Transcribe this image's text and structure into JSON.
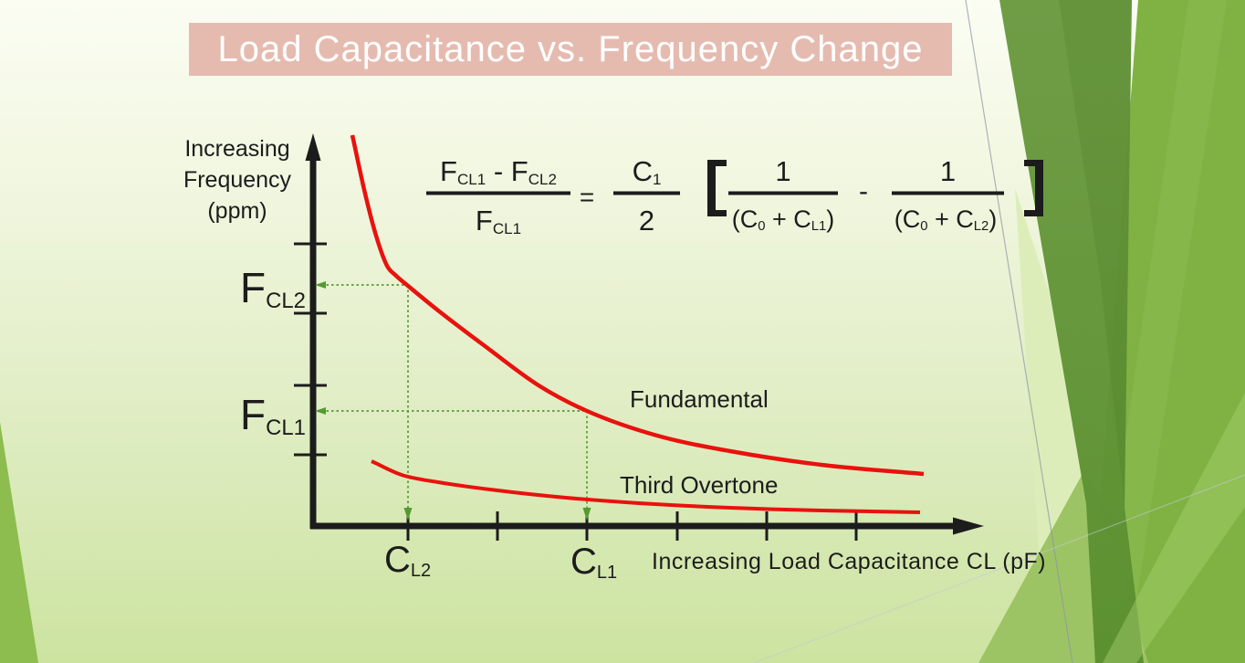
{
  "title": {
    "text": "Load Capacitance vs. Frequency Change"
  },
  "y_axis": {
    "label": "Increasing\nFrequency\n(ppm)",
    "marked_values": [
      {
        "base": "F",
        "sub": "CL2"
      },
      {
        "base": "F",
        "sub": "CL1"
      }
    ]
  },
  "x_axis": {
    "label": "Increasing Load Capacitance CL (pF)",
    "marked_values": [
      {
        "base": "C",
        "sub": "L2"
      },
      {
        "base": "C",
        "sub": "L1"
      }
    ]
  },
  "curve_labels": {
    "fundamental": "Fundamental",
    "third_overtone": "Third Overtone"
  },
  "chart_data": {
    "type": "line",
    "title": "Load Capacitance vs. Frequency Change",
    "xlabel": "Increasing Load Capacitance CL (pF)",
    "ylabel": "Increasing Frequency (ppm)",
    "qualitative": true,
    "series": [
      {
        "name": "Fundamental",
        "shape": "steep hyperbolic decay from high frequency at low CL flattening at high CL"
      },
      {
        "name": "Third Overtone",
        "shape": "shallow decay, much flatter and lower than fundamental"
      }
    ],
    "marked_points": [
      {
        "x": "CL2",
        "y": "FCL2",
        "series": "Fundamental"
      },
      {
        "x": "CL1",
        "y": "FCL1",
        "series": "Fundamental"
      }
    ]
  },
  "formula": {
    "lhs_num": [
      {
        "t": "F"
      },
      {
        "s": "CL1"
      },
      {
        "t": " - F"
      },
      {
        "s": "CL2"
      }
    ],
    "lhs_den": [
      {
        "t": "F"
      },
      {
        "s": "CL1"
      }
    ],
    "equals": "=",
    "c_num": [
      {
        "t": "C"
      },
      {
        "s": "1"
      }
    ],
    "c_den": "2",
    "bracket_left": "[",
    "term1_num": "1",
    "term1_den": [
      {
        "t": "(C"
      },
      {
        "s": "0"
      },
      {
        "t": " + C"
      },
      {
        "s": "L1"
      },
      {
        "t": ")"
      }
    ],
    "minus": "-",
    "term2_num": "1",
    "term2_den": [
      {
        "t": "(C"
      },
      {
        "s": "0"
      },
      {
        "t": " + C"
      },
      {
        "s": "L2"
      },
      {
        "t": ")"
      }
    ]
  },
  "colors": {
    "ink": "#1c1c1c",
    "curve_red": "#e8120e",
    "arrow_green": "#559a31",
    "title_bg": "#e5bbb0",
    "title_text": "#ffffff"
  }
}
